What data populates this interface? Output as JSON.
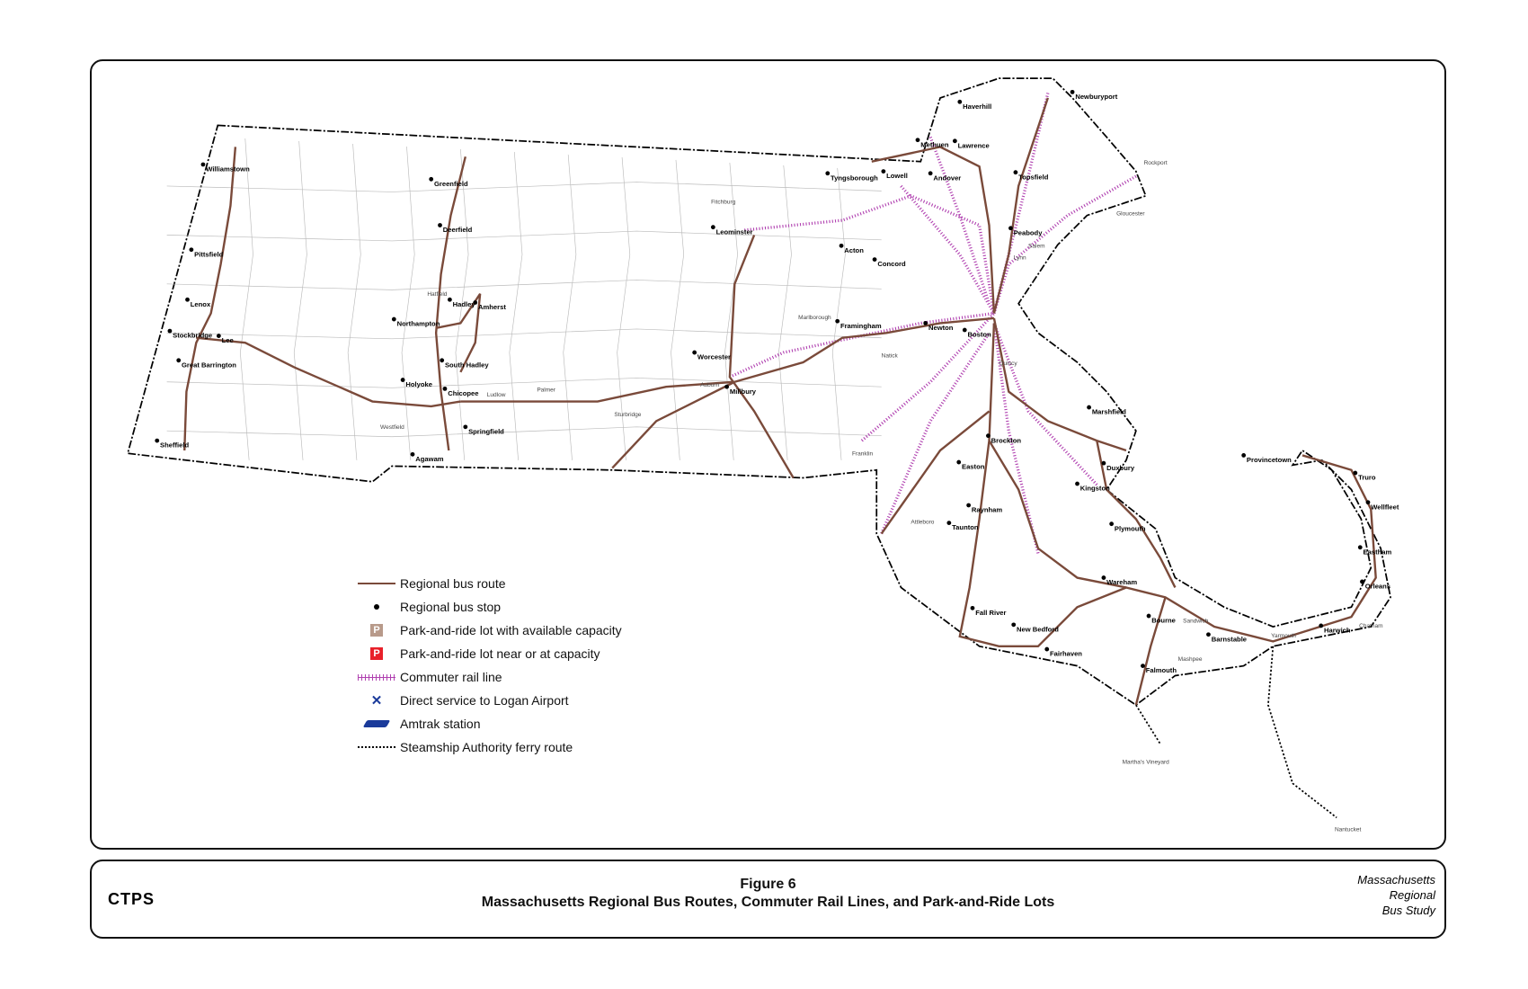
{
  "caption": {
    "logo": "CTPS",
    "figure": "Figure 6",
    "title": "Massachusetts Regional Bus Routes, Commuter Rail Lines, and Park-and-Ride Lots",
    "study_line1": "Massachusetts",
    "study_line2": "Regional",
    "study_line3": "Bus Study"
  },
  "legend": {
    "items": [
      {
        "label": "Regional bus route",
        "icon": "bus-route-line",
        "color": "#7a4a3a"
      },
      {
        "label": "Regional bus stop",
        "icon": "bus-stop-dot",
        "color": "#000000"
      },
      {
        "label": "Park-and-ride lot with available capacity",
        "icon": "park-ride-available",
        "color": "#b89a8a",
        "glyph": "P"
      },
      {
        "label": "Park-and-ride lot near or at capacity",
        "icon": "park-ride-full",
        "color": "#e8202a",
        "glyph": "P"
      },
      {
        "label": "Commuter rail line",
        "icon": "commuter-rail-line",
        "color": "#b040b0"
      },
      {
        "label": "Direct service to Logan Airport",
        "icon": "airplane-icon",
        "color": "#1a3a9a"
      },
      {
        "label": "Amtrak station",
        "icon": "amtrak-icon",
        "color": "#1a3a9a"
      },
      {
        "label": "Steamship Authority ferry route",
        "icon": "ferry-dotted-line",
        "color": "#000000"
      }
    ]
  },
  "map": {
    "colors": {
      "route": "#7a4a3a",
      "rail": "#b040b0",
      "border": "#000000",
      "town": "#aaaaaa"
    },
    "towns": [
      {
        "name": "Williamstown",
        "bold": true,
        "p": [
          210,
          175
        ]
      },
      {
        "name": "Pittsfield",
        "bold": true,
        "p": [
          198,
          262
        ]
      },
      {
        "name": "Lenox",
        "bold": true,
        "p": [
          194,
          313
        ]
      },
      {
        "name": "Lee",
        "bold": true,
        "p": [
          226,
          350
        ]
      },
      {
        "name": "Stockbridge",
        "bold": true,
        "p": [
          176,
          345
        ]
      },
      {
        "name": "Great Barrington",
        "bold": true,
        "p": [
          185,
          375
        ]
      },
      {
        "name": "Sheffield",
        "bold": true,
        "p": [
          163,
          457
        ]
      },
      {
        "name": "Greenfield",
        "bold": true,
        "p": [
          443,
          190
        ]
      },
      {
        "name": "Deerfield",
        "bold": true,
        "p": [
          452,
          237
        ]
      },
      {
        "name": "Northampton",
        "bold": true,
        "p": [
          405,
          333
        ]
      },
      {
        "name": "Hadley",
        "bold": true,
        "p": [
          462,
          313
        ]
      },
      {
        "name": "Amherst",
        "bold": true,
        "p": [
          488,
          316
        ]
      },
      {
        "name": "South Hadley",
        "bold": true,
        "p": [
          454,
          375
        ]
      },
      {
        "name": "Holyoke",
        "bold": true,
        "p": [
          414,
          395
        ]
      },
      {
        "name": "Chicopee",
        "bold": true,
        "p": [
          457,
          404
        ]
      },
      {
        "name": "Springfield",
        "bold": true,
        "p": [
          478,
          443
        ]
      },
      {
        "name": "Agawam",
        "bold": true,
        "p": [
          424,
          471
        ]
      },
      {
        "name": "Leominster",
        "bold": true,
        "p": [
          731,
          239
        ]
      },
      {
        "name": "Worcester",
        "bold": true,
        "p": [
          712,
          367
        ]
      },
      {
        "name": "Millbury",
        "bold": true,
        "p": [
          745,
          402
        ]
      },
      {
        "name": "Framingham",
        "bold": true,
        "p": [
          858,
          335
        ]
      },
      {
        "name": "Lowell",
        "bold": true,
        "p": [
          905,
          182
        ]
      },
      {
        "name": "Tyngsborough",
        "bold": true,
        "p": [
          848,
          184
        ]
      },
      {
        "name": "Haverhill",
        "bold": true,
        "p": [
          983,
          111
        ]
      },
      {
        "name": "Lawrence",
        "bold": true,
        "p": [
          978,
          151
        ]
      },
      {
        "name": "Methuen",
        "bold": true,
        "p": [
          940,
          150
        ]
      },
      {
        "name": "Andover",
        "bold": true,
        "p": [
          953,
          184
        ]
      },
      {
        "name": "Newburyport",
        "bold": true,
        "p": [
          1098,
          101
        ]
      },
      {
        "name": "Topsfield",
        "bold": true,
        "p": [
          1040,
          183
        ]
      },
      {
        "name": "Peabody",
        "bold": true,
        "p": [
          1035,
          240
        ]
      },
      {
        "name": "Acton",
        "bold": true,
        "p": [
          862,
          258
        ]
      },
      {
        "name": "Concord",
        "bold": true,
        "p": [
          896,
          272
        ]
      },
      {
        "name": "Newton",
        "bold": true,
        "p": [
          948,
          337
        ]
      },
      {
        "name": "Boston",
        "bold": true,
        "p": [
          988,
          344
        ]
      },
      {
        "name": "Brockton",
        "bold": true,
        "p": [
          1012,
          452
        ]
      },
      {
        "name": "Easton",
        "bold": true,
        "p": [
          982,
          479
        ]
      },
      {
        "name": "Raynham",
        "bold": true,
        "p": [
          992,
          523
        ]
      },
      {
        "name": "Taunton",
        "bold": true,
        "p": [
          972,
          541
        ]
      },
      {
        "name": "Marshfield",
        "bold": true,
        "p": [
          1115,
          423
        ]
      },
      {
        "name": "Duxbury",
        "bold": true,
        "p": [
          1130,
          480
        ]
      },
      {
        "name": "Kingston",
        "bold": true,
        "p": [
          1103,
          501
        ]
      },
      {
        "name": "Plymouth",
        "bold": true,
        "p": [
          1138,
          542
        ]
      },
      {
        "name": "Wareham",
        "bold": true,
        "p": [
          1130,
          597
        ]
      },
      {
        "name": "Bourne",
        "bold": true,
        "p": [
          1176,
          636
        ]
      },
      {
        "name": "Falmouth",
        "bold": true,
        "p": [
          1170,
          687
        ]
      },
      {
        "name": "Barnstable",
        "bold": true,
        "p": [
          1237,
          655
        ]
      },
      {
        "name": "Harwich",
        "bold": true,
        "p": [
          1352,
          646
        ]
      },
      {
        "name": "Orleans",
        "bold": true,
        "p": [
          1394,
          601
        ]
      },
      {
        "name": "Eastham",
        "bold": true,
        "p": [
          1392,
          566
        ]
      },
      {
        "name": "Wellfleet",
        "bold": true,
        "p": [
          1400,
          520
        ]
      },
      {
        "name": "Truro",
        "bold": true,
        "p": [
          1387,
          490
        ]
      },
      {
        "name": "Provincetown",
        "bold": true,
        "p": [
          1273,
          472
        ]
      },
      {
        "name": "Fall River",
        "bold": true,
        "p": [
          996,
          628
        ]
      },
      {
        "name": "New Bedford",
        "bold": true,
        "p": [
          1038,
          645
        ]
      },
      {
        "name": "Fairhaven",
        "bold": true,
        "p": [
          1072,
          670
        ]
      },
      {
        "name": "Hatfield",
        "bold": false,
        "p": [
          436,
          302
        ]
      },
      {
        "name": "Westfield",
        "bold": false,
        "p": [
          388,
          438
        ]
      },
      {
        "name": "Ludlow",
        "bold": false,
        "p": [
          497,
          405
        ]
      },
      {
        "name": "Palmer",
        "bold": false,
        "p": [
          548,
          400
        ]
      },
      {
        "name": "Fitchburg",
        "bold": false,
        "p": [
          726,
          208
        ]
      },
      {
        "name": "Sturbridge",
        "bold": false,
        "p": [
          627,
          425
        ]
      },
      {
        "name": "Auburn",
        "bold": false,
        "p": [
          715,
          395
        ]
      },
      {
        "name": "Marlborough",
        "bold": false,
        "p": [
          815,
          326
        ]
      },
      {
        "name": "Natick",
        "bold": false,
        "p": [
          900,
          365
        ]
      },
      {
        "name": "Quincy",
        "bold": false,
        "p": [
          1020,
          373
        ]
      },
      {
        "name": "Salem",
        "bold": false,
        "p": [
          1050,
          253
        ]
      },
      {
        "name": "Lynn",
        "bold": false,
        "p": [
          1035,
          265
        ]
      },
      {
        "name": "Gloucester",
        "bold": false,
        "p": [
          1140,
          220
        ]
      },
      {
        "name": "Rockport",
        "bold": false,
        "p": [
          1168,
          168
        ]
      },
      {
        "name": "Franklin",
        "bold": false,
        "p": [
          870,
          465
        ]
      },
      {
        "name": "Attleboro",
        "bold": false,
        "p": [
          930,
          535
        ]
      },
      {
        "name": "Sandwich",
        "bold": false,
        "p": [
          1208,
          636
        ]
      },
      {
        "name": "Mashpee",
        "bold": false,
        "p": [
          1203,
          675
        ]
      },
      {
        "name": "Yarmouth",
        "bold": false,
        "p": [
          1298,
          651
        ]
      },
      {
        "name": "Chatham",
        "bold": false,
        "p": [
          1388,
          641
        ]
      },
      {
        "name": "Martha's Vineyard",
        "bold": false,
        "p": [
          1146,
          780
        ]
      },
      {
        "name": "Nantucket",
        "bold": false,
        "p": [
          1363,
          849
        ]
      }
    ]
  }
}
